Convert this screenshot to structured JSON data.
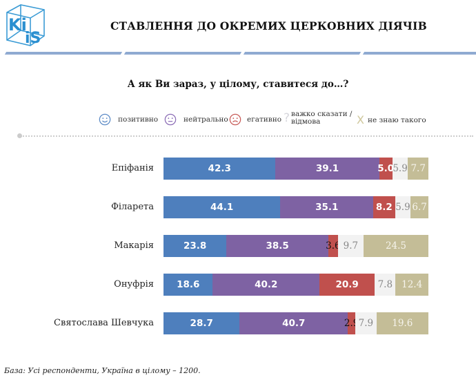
{
  "header": {
    "logo_text_top": "Ki",
    "logo_text_bottom": "iS",
    "title": "СТАВЛЕННЯ ДО ОКРЕМИХ ЦЕРКОВНИХ ДІЯЧІВ"
  },
  "question": "А як Ви зараз, у цілому, ставитеся до…?",
  "legend": [
    {
      "key": "positive",
      "icon": "smile-icon",
      "label": "позитивно",
      "color": "#4e7fbd"
    },
    {
      "key": "neutral",
      "icon": "neutral-face-icon",
      "label": "нейтрально",
      "color": "#7e62a3"
    },
    {
      "key": "negative",
      "icon": "frown-icon",
      "label": "егативно",
      "color": "#c0504d"
    },
    {
      "key": "hard_to_say",
      "icon": "question-icon",
      "label_line1": "важко сказати /",
      "label_line2": "відмова",
      "color": "#d9d9d9"
    },
    {
      "key": "dont_know",
      "icon": "x-icon",
      "label": "не знаю такого",
      "color": "#c4bd97"
    }
  ],
  "chart_data": {
    "type": "bar",
    "orientation": "horizontal",
    "stacked": true,
    "title": "СТАВЛЕННЯ ДО ОКРЕМИХ ЦЕРКОВНИХ ДІЯЧІВ",
    "subtitle": "А як Ви зараз, у цілому, ставитеся до…?",
    "xlabel": "",
    "ylabel": "",
    "xlim": [
      0,
      100
    ],
    "grid": false,
    "legend_position": "top",
    "categories": [
      "Епіфанія",
      "Філарета",
      "Макарія",
      "Онуфрія",
      "Святослава Шевчука"
    ],
    "series": [
      {
        "name": "позитивно",
        "color": "#4e7fbd",
        "values": [
          42.3,
          44.1,
          23.8,
          18.6,
          28.7
        ]
      },
      {
        "name": "нейтрально",
        "color": "#7e62a3",
        "values": [
          39.1,
          35.1,
          38.5,
          40.2,
          40.7
        ]
      },
      {
        "name": "негативно",
        "color": "#c0504d",
        "values": [
          5.0,
          8.2,
          3.6,
          20.9,
          2.9
        ]
      },
      {
        "name": "важко сказати / відмова",
        "color": "#f2f2f2",
        "values": [
          5.9,
          5.9,
          9.7,
          7.8,
          7.9
        ]
      },
      {
        "name": "не знаю такого",
        "color": "#c4bd97",
        "values": [
          7.7,
          6.7,
          24.5,
          12.4,
          19.6
        ]
      }
    ]
  },
  "footnote": "База: Усі респонденти, Україна в цілому – 1200."
}
